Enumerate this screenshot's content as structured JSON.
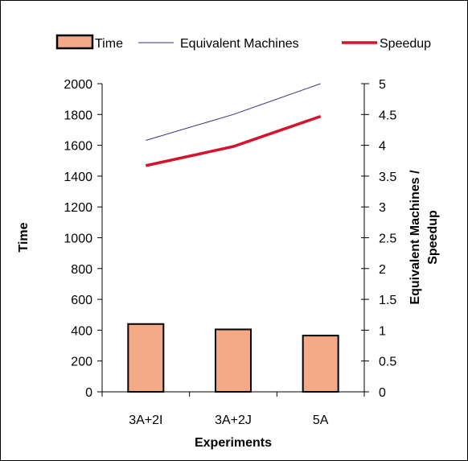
{
  "chart_data": {
    "type": "bar",
    "categories": [
      "3A+2I",
      "3A+2J",
      "5A"
    ],
    "series": [
      {
        "name": "Time",
        "kind": "bar",
        "axis": "left",
        "values": [
          440,
          405,
          365
        ],
        "color": "#F4A987"
      },
      {
        "name": "Equivalent Machines",
        "kind": "line",
        "axis": "right",
        "values": [
          4.08,
          4.5,
          5.0
        ],
        "color": "#33337F"
      },
      {
        "name": "Speedup",
        "kind": "line",
        "axis": "right",
        "values": [
          3.67,
          3.98,
          4.47
        ],
        "color": "#D4142C"
      }
    ],
    "xlabel": "Experiments",
    "ylabel": "Time",
    "y2label_line1": "Equivalent Machines  /",
    "y2label_line2": "Speedup",
    "ylim": [
      0,
      2000
    ],
    "y2lim": [
      0,
      5
    ],
    "yticks": [
      "0",
      "200",
      "400",
      "600",
      "800",
      "1000",
      "1200",
      "1400",
      "1600",
      "1800",
      "2000"
    ],
    "y2ticks": [
      "0",
      "0.5",
      "1",
      "1.5",
      "2",
      "2.5",
      "3",
      "3.5",
      "4",
      "4.5",
      "5"
    ],
    "legend_position": "top",
    "grid": false
  }
}
